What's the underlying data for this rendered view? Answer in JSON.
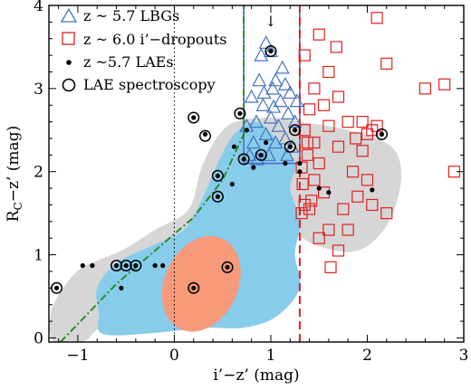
{
  "chart_data": {
    "type": "scatter",
    "xlabel": "i’−z’ (mag)",
    "ylabel": {
      "main": "R",
      "sub": "C",
      "rest": "−z’ (mag)"
    },
    "xlim": [
      -1.3,
      3.0
    ],
    "ylim": [
      -0.05,
      4.0
    ],
    "xticks": [
      -1,
      0,
      1,
      2,
      3
    ],
    "yticks": [
      0,
      1,
      2,
      3,
      4
    ],
    "xtick_labels": [
      "−1",
      "0",
      "1",
      "2",
      "3"
    ],
    "ytick_labels": [
      "0",
      "1",
      "2",
      "3",
      "4"
    ],
    "legend": {
      "position": "top-left",
      "entries": [
        {
          "label": "z ~ 5.7 LBGs",
          "marker": "triangle",
          "color": "#4472c4"
        },
        {
          "label": "z ~ 6.0 i’−dropouts",
          "marker": "square",
          "color": "#e02020"
        },
        {
          "label": "z ~5.7 LAEs",
          "marker": "dot",
          "color": "#000000"
        },
        {
          "label": "LAE spectroscopy",
          "marker": "circle",
          "color": "#000000"
        }
      ]
    },
    "annotation": {
      "text": "↓",
      "x": 1.0,
      "y": 3.75
    },
    "colors": {
      "lbg": "#4472c4",
      "dropout": "#e02020",
      "lae": "#000000",
      "contour_outer": "#d6d6d6",
      "contour_mid": "#87ccea",
      "contour_inner": "#f79a7a",
      "selection_box": "#4472c4",
      "dash_line": "#e02020",
      "dashdot_line": "#2a8a2a"
    },
    "contours": {
      "outer": [
        [
          -1.25,
          -0.05
        ],
        [
          -0.95,
          -0.05
        ],
        [
          -0.8,
          0.1
        ],
        [
          -0.5,
          0.3
        ],
        [
          -0.1,
          0.4
        ],
        [
          0.2,
          0.55
        ],
        [
          0.45,
          0.6
        ],
        [
          0.7,
          1.0
        ],
        [
          1.1,
          1.3
        ],
        [
          1.5,
          1.1
        ],
        [
          1.9,
          1.05
        ],
        [
          2.2,
          1.35
        ],
        [
          2.35,
          1.9
        ],
        [
          2.25,
          2.3
        ],
        [
          1.8,
          2.5
        ],
        [
          1.3,
          2.6
        ],
        [
          0.95,
          2.65
        ],
        [
          0.55,
          2.55
        ],
        [
          0.3,
          2.1
        ],
        [
          0.15,
          1.55
        ],
        [
          -0.2,
          1.3
        ],
        [
          -0.55,
          1.05
        ],
        [
          -0.95,
          0.85
        ],
        [
          -1.15,
          0.6
        ],
        [
          -1.28,
          0.3
        ]
      ],
      "mid": [
        [
          -0.75,
          0.05
        ],
        [
          -0.3,
          0.05
        ],
        [
          0.3,
          0.12
        ],
        [
          0.7,
          0.12
        ],
        [
          1.05,
          0.25
        ],
        [
          1.3,
          0.6
        ],
        [
          1.25,
          1.0
        ],
        [
          1.3,
          1.4
        ],
        [
          1.2,
          1.8
        ],
        [
          1.25,
          2.1
        ],
        [
          1.05,
          2.4
        ],
        [
          0.85,
          2.6
        ],
        [
          0.62,
          2.45
        ],
        [
          0.45,
          2.1
        ],
        [
          0.3,
          1.7
        ],
        [
          0.1,
          1.3
        ],
        [
          -0.25,
          1.1
        ],
        [
          -0.6,
          0.9
        ],
        [
          -0.8,
          0.6
        ],
        [
          -0.78,
          0.3
        ]
      ],
      "inner": {
        "cx": 0.28,
        "cy": 0.65,
        "rx": 0.38,
        "ry": 0.6,
        "rotate_deg": 25
      }
    },
    "selection_box": {
      "x0": 0.72,
      "x1": 1.3,
      "y0": 2.1,
      "y1": 4.0
    },
    "dashed_line_x": 1.3,
    "dotted_line_x": 0.0,
    "dashdot_line": [
      [
        -1.18,
        -0.05
      ],
      [
        -0.6,
        0.65
      ],
      [
        -0.2,
        1.05
      ],
      [
        0.2,
        1.45
      ],
      [
        0.5,
        1.9
      ],
      [
        0.72,
        2.45
      ],
      [
        0.72,
        4.0
      ]
    ],
    "series": [
      {
        "name": "z ~ 5.7 LBGs",
        "marker": "triangle",
        "points": [
          [
            0.78,
            2.2
          ],
          [
            0.82,
            2.35
          ],
          [
            0.85,
            2.6
          ],
          [
            0.8,
            2.9
          ],
          [
            0.88,
            3.1
          ],
          [
            0.92,
            2.8
          ],
          [
            0.95,
            2.45
          ],
          [
            0.98,
            2.2
          ],
          [
            1.0,
            2.65
          ],
          [
            1.02,
            3.0
          ],
          [
            1.05,
            2.35
          ],
          [
            1.08,
            2.55
          ],
          [
            1.1,
            2.85
          ],
          [
            1.12,
            3.25
          ],
          [
            1.15,
            2.4
          ],
          [
            1.18,
            2.7
          ],
          [
            1.2,
            2.95
          ],
          [
            1.22,
            2.3
          ],
          [
            1.25,
            2.6
          ],
          [
            1.27,
            2.85
          ],
          [
            0.9,
            3.4
          ],
          [
            0.95,
            3.55
          ],
          [
            1.0,
            3.45
          ],
          [
            1.05,
            3.1
          ],
          [
            1.15,
            3.05
          ],
          [
            0.75,
            2.55
          ],
          [
            0.86,
            2.15
          ],
          [
            1.17,
            2.2
          ],
          [
            0.93,
            2.95
          ],
          [
            1.03,
            2.78
          ]
        ]
      },
      {
        "name": "z ~ 6.0 i’−dropouts",
        "marker": "square",
        "points": [
          [
            1.35,
            3.4
          ],
          [
            1.5,
            3.65
          ],
          [
            1.6,
            3.2
          ],
          [
            1.68,
            3.5
          ],
          [
            1.45,
            3.0
          ],
          [
            1.4,
            2.75
          ],
          [
            1.55,
            2.8
          ],
          [
            1.7,
            2.9
          ],
          [
            1.8,
            2.6
          ],
          [
            1.88,
            2.4
          ],
          [
            1.95,
            2.25
          ],
          [
            2.0,
            2.45
          ],
          [
            2.05,
            2.5
          ],
          [
            2.1,
            2.55
          ],
          [
            2.2,
            3.3
          ],
          [
            2.6,
            3.0
          ],
          [
            2.8,
            3.05
          ],
          [
            2.9,
            2.0
          ],
          [
            2.1,
            3.85
          ],
          [
            1.35,
            2.5
          ],
          [
            1.38,
            2.2
          ],
          [
            1.32,
            2.05
          ],
          [
            1.33,
            1.85
          ],
          [
            1.35,
            1.6
          ],
          [
            1.32,
            1.5
          ],
          [
            1.4,
            1.55
          ],
          [
            1.45,
            1.9
          ],
          [
            1.5,
            2.1
          ],
          [
            1.55,
            1.75
          ],
          [
            1.6,
            1.3
          ],
          [
            1.62,
            0.85
          ],
          [
            1.7,
            1.05
          ],
          [
            1.75,
            1.55
          ],
          [
            1.8,
            1.3
          ],
          [
            1.9,
            1.7
          ],
          [
            2.0,
            1.9
          ],
          [
            2.05,
            1.6
          ],
          [
            2.2,
            1.5
          ],
          [
            1.5,
            1.2
          ],
          [
            1.45,
            2.35
          ],
          [
            1.7,
            2.3
          ],
          [
            1.85,
            2.0
          ],
          [
            1.95,
            2.6
          ],
          [
            1.42,
            1.65
          ],
          [
            1.38,
            2.35
          ],
          [
            1.6,
            2.55
          ]
        ]
      },
      {
        "name": "z ~5.7 LAEs",
        "marker": "dot",
        "points": [
          [
            -1.22,
            0.6
          ],
          [
            -0.95,
            0.87
          ],
          [
            -0.85,
            0.87
          ],
          [
            -0.6,
            0.87
          ],
          [
            -0.5,
            0.87
          ],
          [
            -0.4,
            0.87
          ],
          [
            -0.2,
            0.87
          ],
          [
            -0.12,
            0.87
          ],
          [
            -0.55,
            0.6
          ],
          [
            0.2,
            0.6
          ],
          [
            0.55,
            0.85
          ],
          [
            0.2,
            2.65
          ],
          [
            0.32,
            2.45
          ],
          [
            0.45,
            1.7
          ],
          [
            0.45,
            1.95
          ],
          [
            0.62,
            2.3
          ],
          [
            0.68,
            2.7
          ],
          [
            0.72,
            2.15
          ],
          [
            0.75,
            2.5
          ],
          [
            0.9,
            2.2
          ],
          [
            0.95,
            2.35
          ],
          [
            1.0,
            3.45
          ],
          [
            1.2,
            2.3
          ],
          [
            1.25,
            2.5
          ],
          [
            1.15,
            2.1
          ],
          [
            1.3,
            2.1
          ],
          [
            1.3,
            2.0
          ],
          [
            1.5,
            1.8
          ],
          [
            1.6,
            1.75
          ],
          [
            2.05,
            1.78
          ],
          [
            2.15,
            2.45
          ],
          [
            0.82,
            2.05
          ],
          [
            0.6,
            1.85
          ]
        ]
      },
      {
        "name": "LAE spectroscopy",
        "marker": "circle",
        "points": [
          [
            -1.22,
            0.6
          ],
          [
            -0.6,
            0.87
          ],
          [
            -0.5,
            0.87
          ],
          [
            -0.4,
            0.87
          ],
          [
            0.2,
            0.6
          ],
          [
            0.55,
            0.85
          ],
          [
            0.2,
            2.65
          ],
          [
            0.45,
            1.7
          ],
          [
            0.45,
            1.95
          ],
          [
            0.68,
            2.7
          ],
          [
            0.72,
            2.15
          ],
          [
            0.9,
            2.2
          ],
          [
            1.0,
            3.45
          ],
          [
            1.25,
            2.5
          ],
          [
            1.2,
            2.3
          ],
          [
            2.15,
            2.45
          ],
          [
            0.32,
            2.43
          ]
        ]
      }
    ]
  }
}
